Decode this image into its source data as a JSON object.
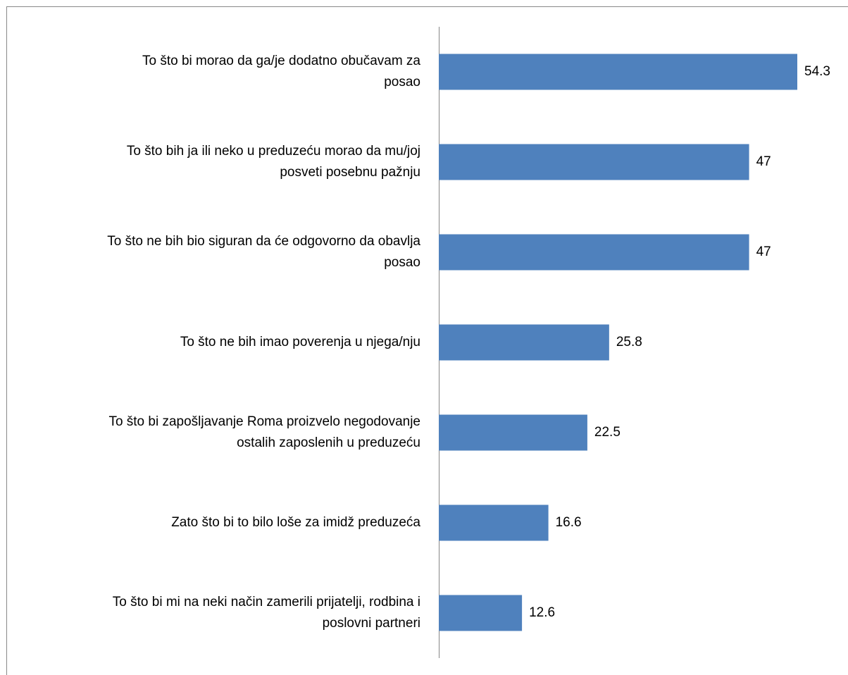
{
  "chart_data": {
    "type": "bar",
    "orientation": "horizontal",
    "categories": [
      "To što bi morao da ga/je dodatno obučavam za\nposao",
      "To što bih ja ili neko u preduzeću morao da mu/joj\nposveti posebnu pažnju",
      "To što ne bih bio siguran da će odgovorno da obavlja\nposao",
      "To što ne bih imao poverenja u njega/nju",
      "To što bi zapošljavanje Roma proizvelo negodovanje\nostalih zaposlenih u preduzeću",
      "Zato što bi to bilo loše za imidž preduzeća",
      "To što bi mi na neki način zamerili prijatelji, rodbina i\nposlovni partneri"
    ],
    "values": [
      54.3,
      47,
      47,
      25.8,
      22.5,
      16.6,
      12.6
    ],
    "color": "#4f81bd"
  }
}
